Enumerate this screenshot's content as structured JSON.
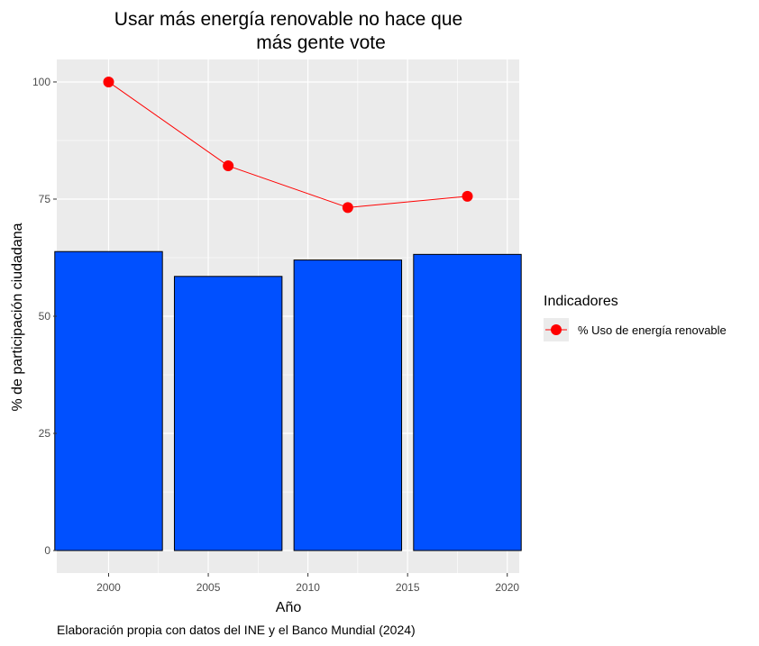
{
  "chart_data": {
    "type": "bar",
    "title_lines": [
      "Usar más energía renovable no hace que",
      "más gente vote"
    ],
    "xlabel": "Año",
    "ylabel": "% de participación ciudadana",
    "caption": "Elaboración propia con datos del INE y el Banco Mundial (2024)",
    "xlim": [
      1997.4,
      2020.6
    ],
    "ylim": [
      -4.8,
      104.8
    ],
    "x_ticks": [
      2000,
      2005,
      2010,
      2015,
      2020
    ],
    "y_ticks": [
      0,
      25,
      50,
      75,
      100
    ],
    "grid": true,
    "bars": {
      "x": [
        2000,
        2006,
        2012,
        2018
      ],
      "values": [
        63.8,
        58.5,
        62.0,
        63.2
      ],
      "width": 5.4,
      "color": "#0050ff",
      "outline": "#000000"
    },
    "series": [
      {
        "name": "% Uso de energía renovable",
        "type": "line",
        "x": [
          2000,
          2006,
          2012,
          2018
        ],
        "values": [
          100.0,
          82.1,
          73.2,
          75.6
        ],
        "color": "#ff0000"
      }
    ],
    "legend": {
      "title": "Indicadores",
      "position": "right"
    },
    "colors": {
      "panel_bg": "#ebebeb",
      "grid": "#ffffff"
    }
  }
}
